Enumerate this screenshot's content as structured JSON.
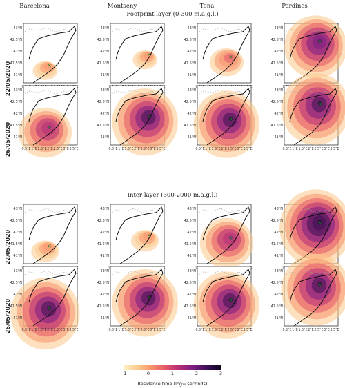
{
  "columns": [
    "Barcelona",
    "Montseny",
    "Tona",
    "Pardines"
  ],
  "sections": [
    {
      "title": "Footprint layer (0-300 m.a.g.l.)",
      "rows": [
        "22/05/2020",
        "26/05/2020"
      ],
      "intensity": [
        [
          0.15,
          0.15,
          0.3,
          0.75
        ],
        [
          0.6,
          0.8,
          0.8,
          0.85
        ]
      ]
    },
    {
      "title": "Inter-layer (300-2000 m.a.g.l.)",
      "rows": [
        "22/05/2020",
        "26/05/2020"
      ],
      "intensity": [
        [
          0.2,
          0.2,
          0.6,
          0.9
        ],
        [
          0.85,
          0.8,
          0.8,
          0.85
        ]
      ]
    }
  ],
  "axes": {
    "y_ticks": [
      "43°N",
      "42.5°N",
      "42°N",
      "41.5°N",
      "41°N"
    ],
    "x_ticks": [
      "0.5°E",
      "1°E",
      "1.5°E",
      "2°E",
      "2.5°E",
      "3°E",
      "3.5°E"
    ]
  },
  "colorbar": {
    "ticks": [
      "-1",
      "0",
      "1",
      "2",
      "3"
    ],
    "label": "Residence time (log₁₀ seconds)",
    "colors": [
      "#fdf0c0",
      "#fcc98a",
      "#f7936b",
      "#e5566a",
      "#b52d77",
      "#7a1c84",
      "#3d1054",
      "#0f0520"
    ]
  },
  "marker_color": "#1a8a2a"
}
